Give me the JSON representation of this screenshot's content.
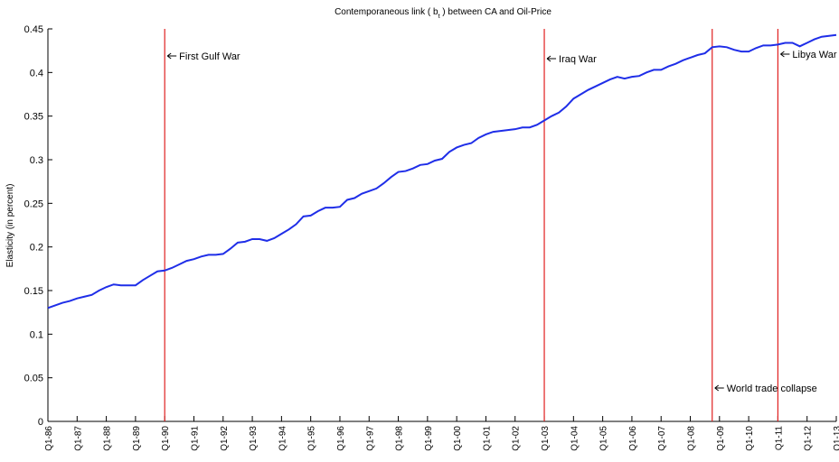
{
  "chart_data": {
    "type": "line",
    "title": [
      "Contemporaneous link ( b",
      "t",
      " ) between CA and Oil-Price"
    ],
    "y_label": "Elasticity (in percent)",
    "categories": [
      "Q1-86",
      null,
      null,
      null,
      "Q1-87",
      null,
      null,
      null,
      "Q1-88",
      null,
      null,
      null,
      "Q1-89",
      null,
      null,
      null,
      "Q1-90",
      null,
      null,
      null,
      "Q1-91",
      null,
      null,
      null,
      "Q1-92",
      null,
      null,
      null,
      "Q1-93",
      null,
      null,
      null,
      "Q1-94",
      null,
      null,
      null,
      "Q1-95",
      null,
      null,
      null,
      "Q1-96",
      null,
      null,
      null,
      "Q1-97",
      null,
      null,
      null,
      "Q1-98",
      null,
      null,
      null,
      "Q1-99",
      null,
      null,
      null,
      "Q1-00",
      null,
      null,
      null,
      "Q1-01",
      null,
      null,
      null,
      "Q1-02",
      null,
      null,
      null,
      "Q1-03",
      null,
      null,
      null,
      "Q1-04",
      null,
      null,
      null,
      "Q1-05",
      null,
      null,
      null,
      "Q1-06",
      null,
      null,
      null,
      "Q1-07",
      null,
      null,
      null,
      "Q1-08",
      null,
      null,
      null,
      "Q1-09",
      null,
      null,
      null,
      "Q1-10",
      null,
      null,
      null,
      "Q1-11",
      null,
      null,
      null,
      "Q1-12",
      null,
      null,
      null,
      "Q1-13"
    ],
    "series": [
      {
        "color": "#1f2ee8",
        "values": [
          0.13,
          0.133,
          0.136,
          0.138,
          0.141,
          0.143,
          0.145,
          0.15,
          0.154,
          0.157,
          0.156,
          0.156,
          0.156,
          0.162,
          0.167,
          0.172,
          0.173,
          0.176,
          0.18,
          0.184,
          0.186,
          0.189,
          0.191,
          0.191,
          0.192,
          0.198,
          0.205,
          0.206,
          0.209,
          0.209,
          0.207,
          0.21,
          0.215,
          0.22,
          0.226,
          0.235,
          0.236,
          0.241,
          0.245,
          0.245,
          0.246,
          0.254,
          0.256,
          0.261,
          0.264,
          0.267,
          0.273,
          0.28,
          0.286,
          0.287,
          0.29,
          0.294,
          0.295,
          0.299,
          0.301,
          0.309,
          0.314,
          0.317,
          0.319,
          0.325,
          0.329,
          0.332,
          0.333,
          0.334,
          0.335,
          0.337,
          0.337,
          0.34,
          0.345,
          0.35,
          0.354,
          0.361,
          0.37,
          0.375,
          0.38,
          0.384,
          0.388,
          0.392,
          0.395,
          0.393,
          0.395,
          0.396,
          0.4,
          0.403,
          0.403,
          0.407,
          0.41,
          0.414,
          0.417,
          0.42,
          0.422,
          0.429,
          0.43,
          0.429,
          0.426,
          0.424,
          0.424,
          0.428,
          0.431,
          0.431,
          0.432,
          0.434,
          0.434,
          0.43,
          0.434,
          0.438,
          0.441,
          0.442,
          0.443
        ]
      }
    ],
    "events": [
      {
        "label": "First Gulf War",
        "at": 16,
        "color": "#e02020"
      },
      {
        "label": "Iraq War",
        "at": 68,
        "color": "#e02020"
      },
      {
        "label": "World trade collapse",
        "at": 91,
        "color": "#e02020"
      },
      {
        "label": "Libya War",
        "at": 100,
        "color": "#e02020"
      }
    ],
    "ylim": [
      0,
      0.45
    ],
    "yticks": [
      0,
      0.05,
      0.1,
      0.15,
      0.2,
      0.25,
      0.3,
      0.35,
      0.4,
      0.45
    ],
    "grid": false
  }
}
